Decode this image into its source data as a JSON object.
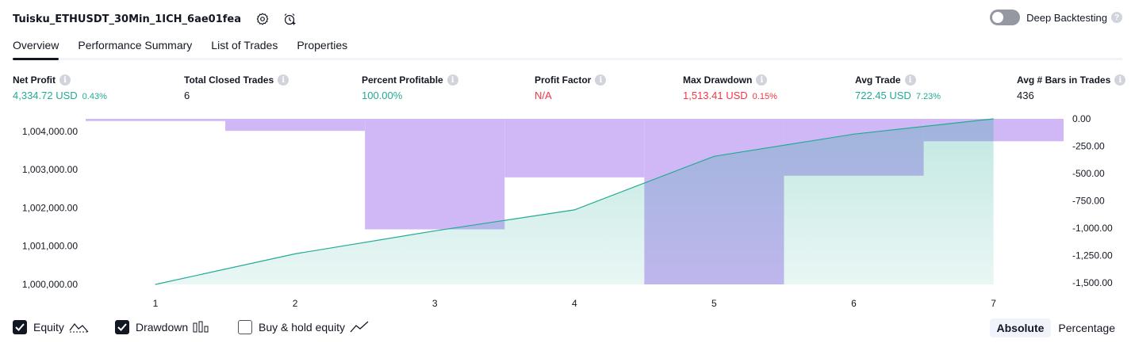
{
  "header": {
    "strategy_name": "Tuisku_ETHUSDT_30Min_1ICH_6ae01fea",
    "deep_backtesting_label": "Deep Backtesting",
    "help_glyph": "?"
  },
  "tabs": [
    {
      "label": "Overview",
      "active": true
    },
    {
      "label": "Performance Summary",
      "active": false
    },
    {
      "label": "List of Trades",
      "active": false
    },
    {
      "label": "Properties",
      "active": false
    }
  ],
  "stats": [
    {
      "label": "Net Profit",
      "value": "4,334.72 USD",
      "pct": "0.43%",
      "color": "#22ab94"
    },
    {
      "label": "Total Closed Trades",
      "value": "6",
      "pct": "",
      "color": "#131722"
    },
    {
      "label": "Percent Profitable",
      "value": "100.00%",
      "pct": "",
      "color": "#22ab94"
    },
    {
      "label": "Profit Factor",
      "value": "N/A",
      "pct": "",
      "color": "#f23645"
    },
    {
      "label": "Max Drawdown",
      "value": "1,513.41 USD",
      "pct": "0.15%",
      "color": "#f23645"
    },
    {
      "label": "Avg Trade",
      "value": "722.45 USD",
      "pct": "7.23%",
      "color": "#22ab94"
    },
    {
      "label": "Avg # Bars in Trades",
      "value": "436",
      "pct": "",
      "color": "#131722"
    }
  ],
  "info_glyph": "i",
  "chart_data": {
    "type": "line",
    "x": [
      1,
      2,
      3,
      4,
      5,
      6,
      7
    ],
    "equity": {
      "name": "Equity",
      "values": [
        1000000,
        1000800,
        1001400,
        1001950,
        1003350,
        1003930,
        1004330
      ],
      "color": "#22ab94"
    },
    "drawdown": {
      "name": "Drawdown",
      "type": "bar",
      "values": [
        -20,
        -110,
        -1010,
        -535,
        -1513.41,
        -520,
        -205
      ],
      "color": "#cdb4f7"
    },
    "left_axis_ticks": [
      "1,004,000.00",
      "1,003,000.00",
      "1,002,000.00",
      "1,001,000.00",
      "1,000,000.00"
    ],
    "left_axis_values": [
      1004000,
      1003000,
      1002000,
      1001000,
      1000000
    ],
    "right_axis_ticks": [
      "0.00",
      "-250.00",
      "-500.00",
      "-750.00",
      "-1,000.00",
      "-1,250.00",
      "-1,500.00"
    ],
    "right_axis_values": [
      0,
      -250,
      -500,
      -750,
      -1000,
      -1250,
      -1500
    ],
    "x_ticks": [
      "1",
      "2",
      "3",
      "4",
      "5",
      "6",
      "7"
    ]
  },
  "footer": {
    "equity_label": "Equity",
    "equity_checked": true,
    "drawdown_label": "Drawdown",
    "drawdown_checked": true,
    "buyhold_label": "Buy & hold equity",
    "buyhold_checked": false,
    "absolute_label": "Absolute",
    "percentage_label": "Percentage"
  }
}
